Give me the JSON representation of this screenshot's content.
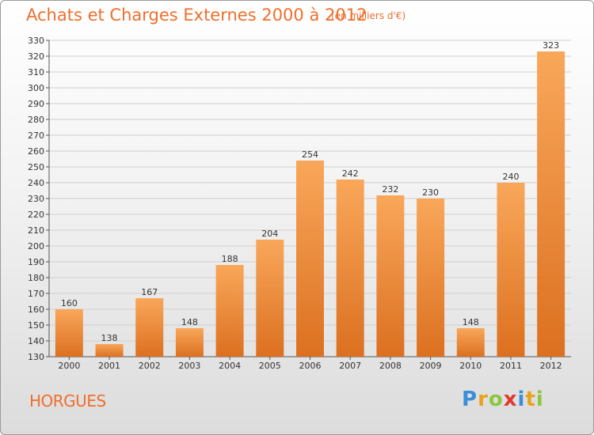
{
  "header": {
    "title": "Achats et Charges Externes 2000 à 2012",
    "subtitle": "(en milliers d'€)"
  },
  "footer": {
    "commune": "HORGUES",
    "brand": "Proxiti",
    "brand_colors": [
      "#3a8fd8",
      "#e8a31e",
      "#8cc63f",
      "#e03a2e",
      "#3a8fd8",
      "#e8a31e",
      "#8cc63f"
    ]
  },
  "colors": {
    "bar_light": "#f9a75a",
    "bar_dark": "#dc7020",
    "accent": "#ee6f2c",
    "grid": "#cfcfcf"
  },
  "chart_data": {
    "type": "bar",
    "title": "Achats et Charges Externes 2000 à 2012",
    "subtitle": "(en milliers d'€)",
    "xlabel": "",
    "ylabel": "",
    "categories": [
      "2000",
      "2001",
      "2002",
      "2003",
      "2004",
      "2005",
      "2006",
      "2007",
      "2008",
      "2009",
      "2010",
      "2011",
      "2012"
    ],
    "values": [
      160,
      138,
      167,
      148,
      188,
      204,
      254,
      242,
      232,
      230,
      148,
      240,
      323
    ],
    "ylim": [
      130,
      330
    ],
    "yticks": [
      130,
      140,
      150,
      160,
      170,
      180,
      190,
      200,
      210,
      220,
      230,
      240,
      250,
      260,
      270,
      280,
      290,
      300,
      310,
      320,
      330
    ],
    "grid": true,
    "data_labels": true
  }
}
